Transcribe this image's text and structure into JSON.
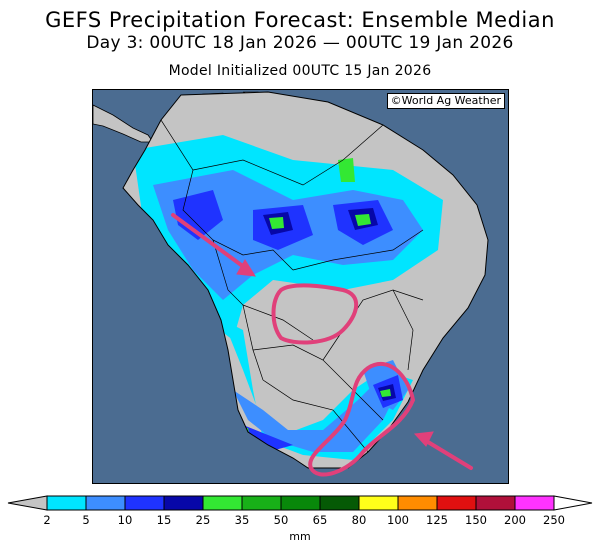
{
  "header": {
    "title": "GEFS Precipitation Forecast: Ensemble Median",
    "valid_period": "Day 3: 00UTC 18 Jan 2026 — 00UTC 19 Jan 2026",
    "init": "Model Initialized 00UTC 15 Jan 2026"
  },
  "map": {
    "credit": "©World Ag Weather",
    "region": "South America",
    "ocean_color": "#4b6c91",
    "land_color": "#c4c4c4",
    "annotations": [
      {
        "type": "arrow",
        "color": "#e0407a",
        "points_to": "central Brazil"
      },
      {
        "type": "circle",
        "color": "#e0407a",
        "highlights": "central Brazil dry pocket"
      },
      {
        "type": "circle",
        "color": "#e0407a",
        "highlights": "southern Brazil / Uruguay"
      },
      {
        "type": "arrow",
        "color": "#e0407a",
        "points_to": "southern Brazil"
      }
    ]
  },
  "colorbar": {
    "units": "mm",
    "ticks": [
      "2",
      "5",
      "10",
      "15",
      "25",
      "35",
      "50",
      "65",
      "80",
      "100",
      "125",
      "150",
      "200",
      "250"
    ],
    "colors": [
      "#00e5ff",
      "#3d8eff",
      "#1f33ff",
      "#0707a8",
      "#33e833",
      "#18b018",
      "#08880a",
      "#055a05",
      "#ffff1a",
      "#ff8c00",
      "#e01010",
      "#b0103a",
      "#ff33ff",
      "#9944cc"
    ],
    "under_color": "#c4c4c4",
    "over_color": "#ffffff"
  }
}
